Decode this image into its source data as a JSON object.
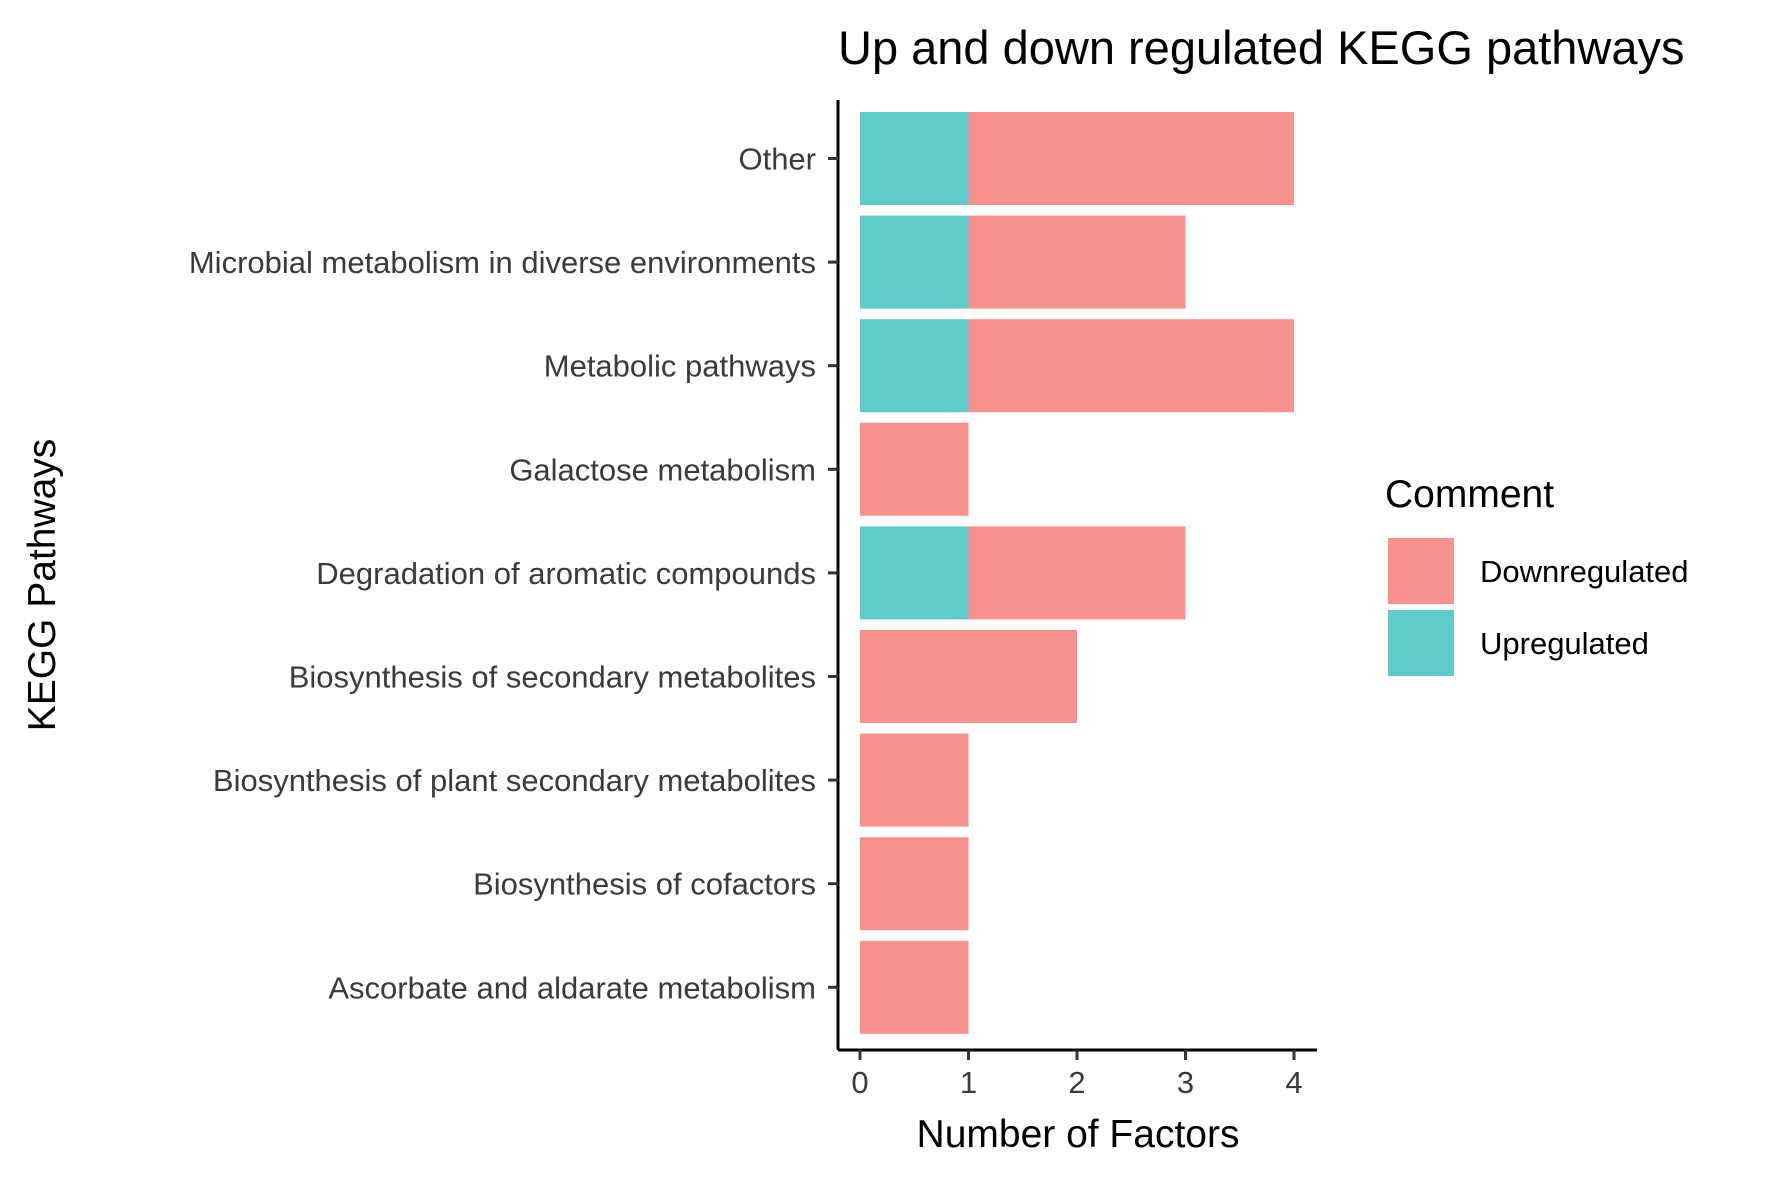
{
  "chart_data": {
    "type": "bar",
    "orientation": "horizontal",
    "stacked": true,
    "title": "Up and down regulated KEGG pathways",
    "xlabel": "Number of Factors",
    "ylabel": "KEGG Pathways",
    "xlim": [
      0,
      4
    ],
    "xticks": [
      "0",
      "1",
      "2",
      "3",
      "4"
    ],
    "grid": false,
    "legend": {
      "title": "Comment",
      "position": "right",
      "entries": [
        "Downregulated",
        "Upregulated"
      ]
    },
    "categories": [
      "Other",
      "Microbial metabolism in diverse environments",
      "Metabolic pathways",
      "Galactose metabolism",
      "Degradation of aromatic compounds",
      "Biosynthesis of secondary metabolites",
      "Biosynthesis of plant secondary metabolites",
      "Biosynthesis of cofactors",
      "Ascorbate and aldarate metabolism"
    ],
    "series": [
      {
        "name": "Upregulated",
        "color": "#5ECACB",
        "values": [
          1,
          1,
          1,
          0,
          1,
          0,
          0,
          0,
          0
        ]
      },
      {
        "name": "Downregulated",
        "color": "#F8908C",
        "values": [
          3,
          2,
          3,
          1,
          2,
          2,
          1,
          1,
          1
        ]
      }
    ]
  }
}
